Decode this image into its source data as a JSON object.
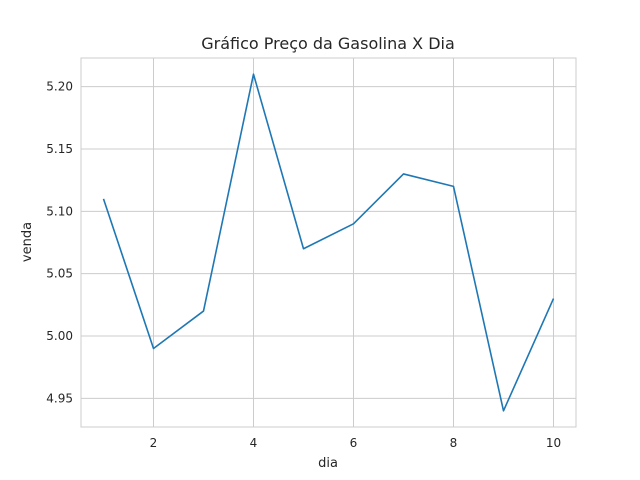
{
  "chart_data": {
    "type": "line",
    "title": "Gráfico Preço da Gasolina X Dia",
    "xlabel": "dia",
    "ylabel": "venda",
    "x": [
      1,
      2,
      3,
      4,
      5,
      6,
      7,
      8,
      9,
      10
    ],
    "series": [
      {
        "values": [
          5.11,
          4.99,
          5.02,
          5.21,
          5.07,
          5.09,
          5.13,
          5.12,
          4.94,
          5.03
        ]
      }
    ],
    "xlim": [
      0.55,
      10.45
    ],
    "ylim": [
      4.927,
      5.223
    ],
    "xticks": [
      2,
      4,
      6,
      8,
      10
    ],
    "xtick_labels": [
      "2",
      "4",
      "6",
      "8",
      "10"
    ],
    "yticks": [
      4.95,
      5.0,
      5.05,
      5.1,
      5.15,
      5.2
    ],
    "ytick_labels": [
      "4.95",
      "5.00",
      "5.05",
      "5.10",
      "5.15",
      "5.20"
    ],
    "grid": true,
    "line_color": "#1f77b4"
  }
}
